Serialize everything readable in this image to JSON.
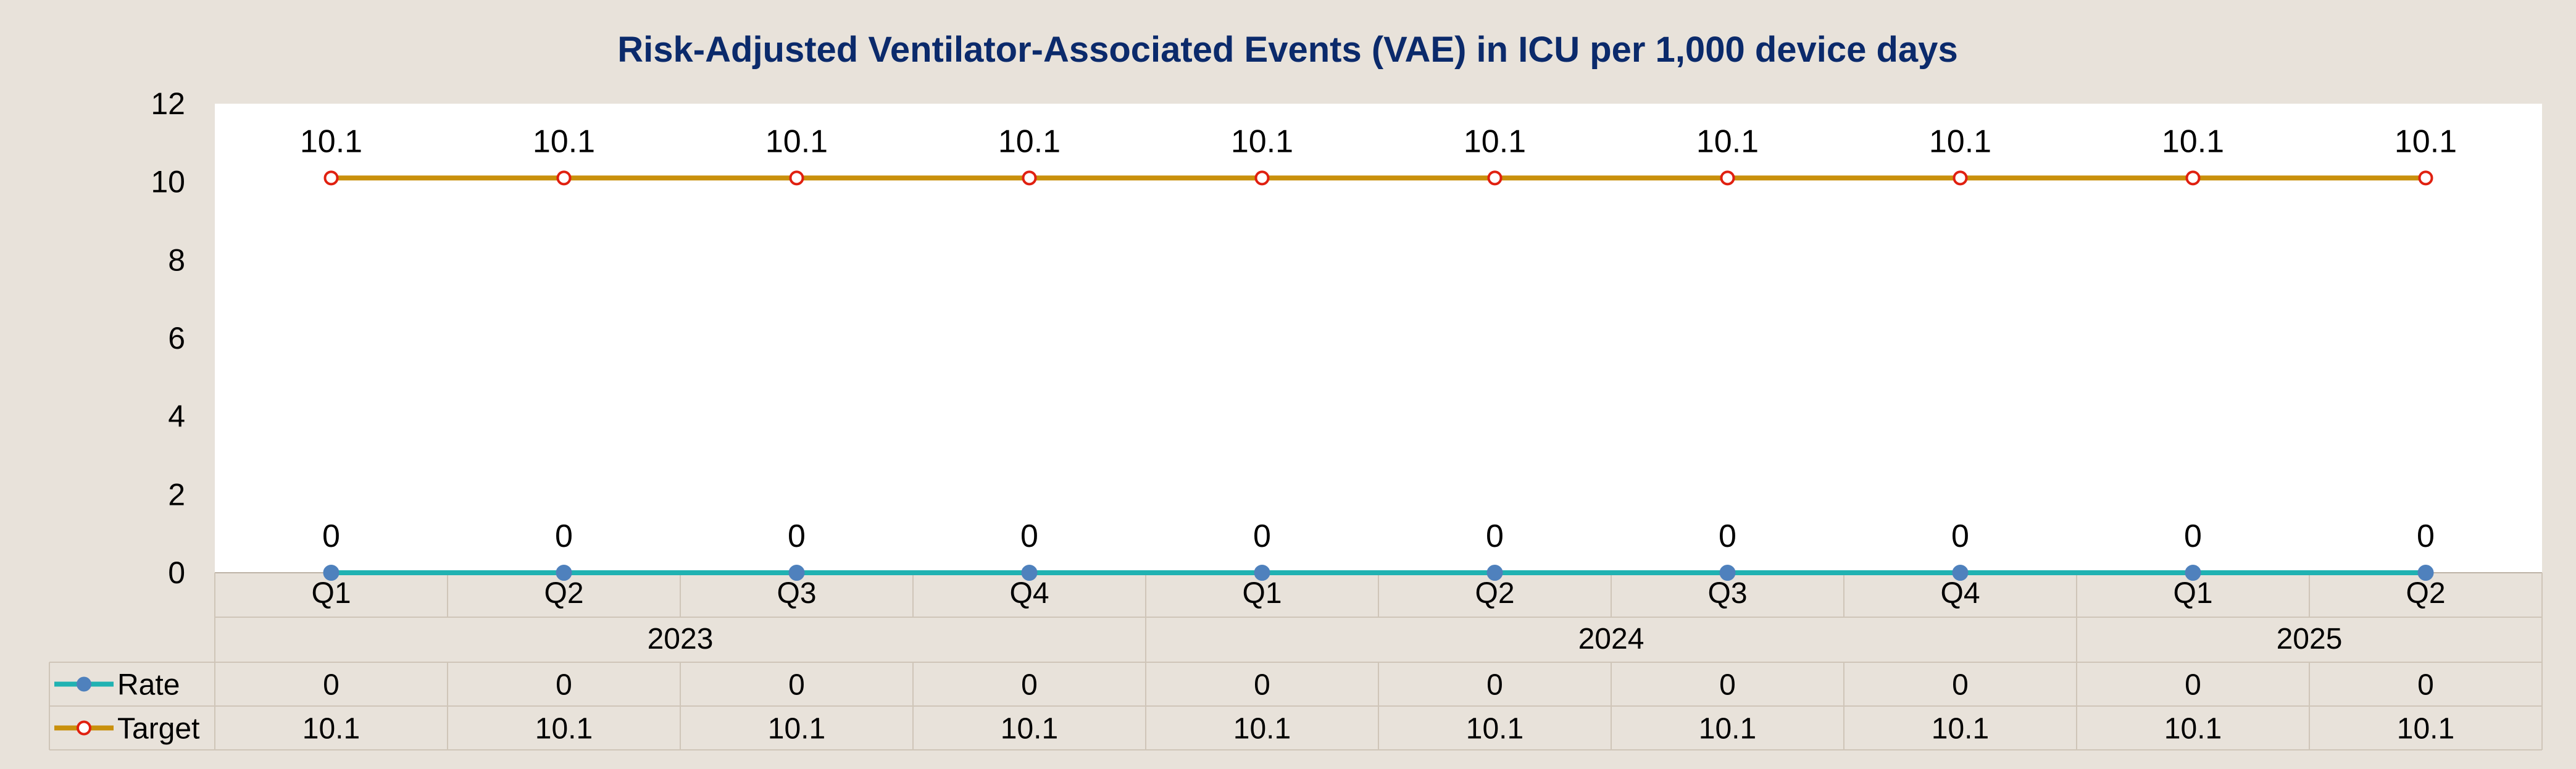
{
  "chart_data": {
    "type": "line",
    "title": "Risk-Adjusted Ventilator-Associated Events (VAE) in ICU per 1,000 device days",
    "categories": [
      "Q1",
      "Q2",
      "Q3",
      "Q4",
      "Q1",
      "Q2",
      "Q3",
      "Q4",
      "Q1",
      "Q2"
    ],
    "years": [
      {
        "label": "2023",
        "span": 4
      },
      {
        "label": "2024",
        "span": 4
      },
      {
        "label": "2025",
        "span": 2
      }
    ],
    "series": [
      {
        "name": "Rate",
        "values": [
          0,
          0,
          0,
          0,
          0,
          0,
          0,
          0,
          0,
          0
        ],
        "color": "#20b2b2",
        "marker": "filled-circle",
        "marker_color": "#4f81bd"
      },
      {
        "name": "Target",
        "values": [
          10.1,
          10.1,
          10.1,
          10.1,
          10.1,
          10.1,
          10.1,
          10.1,
          10.1,
          10.1
        ],
        "color": "#c9900c",
        "marker": "open-circle",
        "marker_color": "#e02010"
      }
    ],
    "ylim": [
      0,
      12
    ],
    "yticks": [
      0,
      2,
      4,
      6,
      8,
      10,
      12
    ],
    "grid": false,
    "data_labels": true,
    "legend": "data-table",
    "colors": {
      "title": "#0b2a6b",
      "plot_background": "#ffffff",
      "page_background": "#e8e2da",
      "table_border": "#cfc5b8"
    }
  }
}
